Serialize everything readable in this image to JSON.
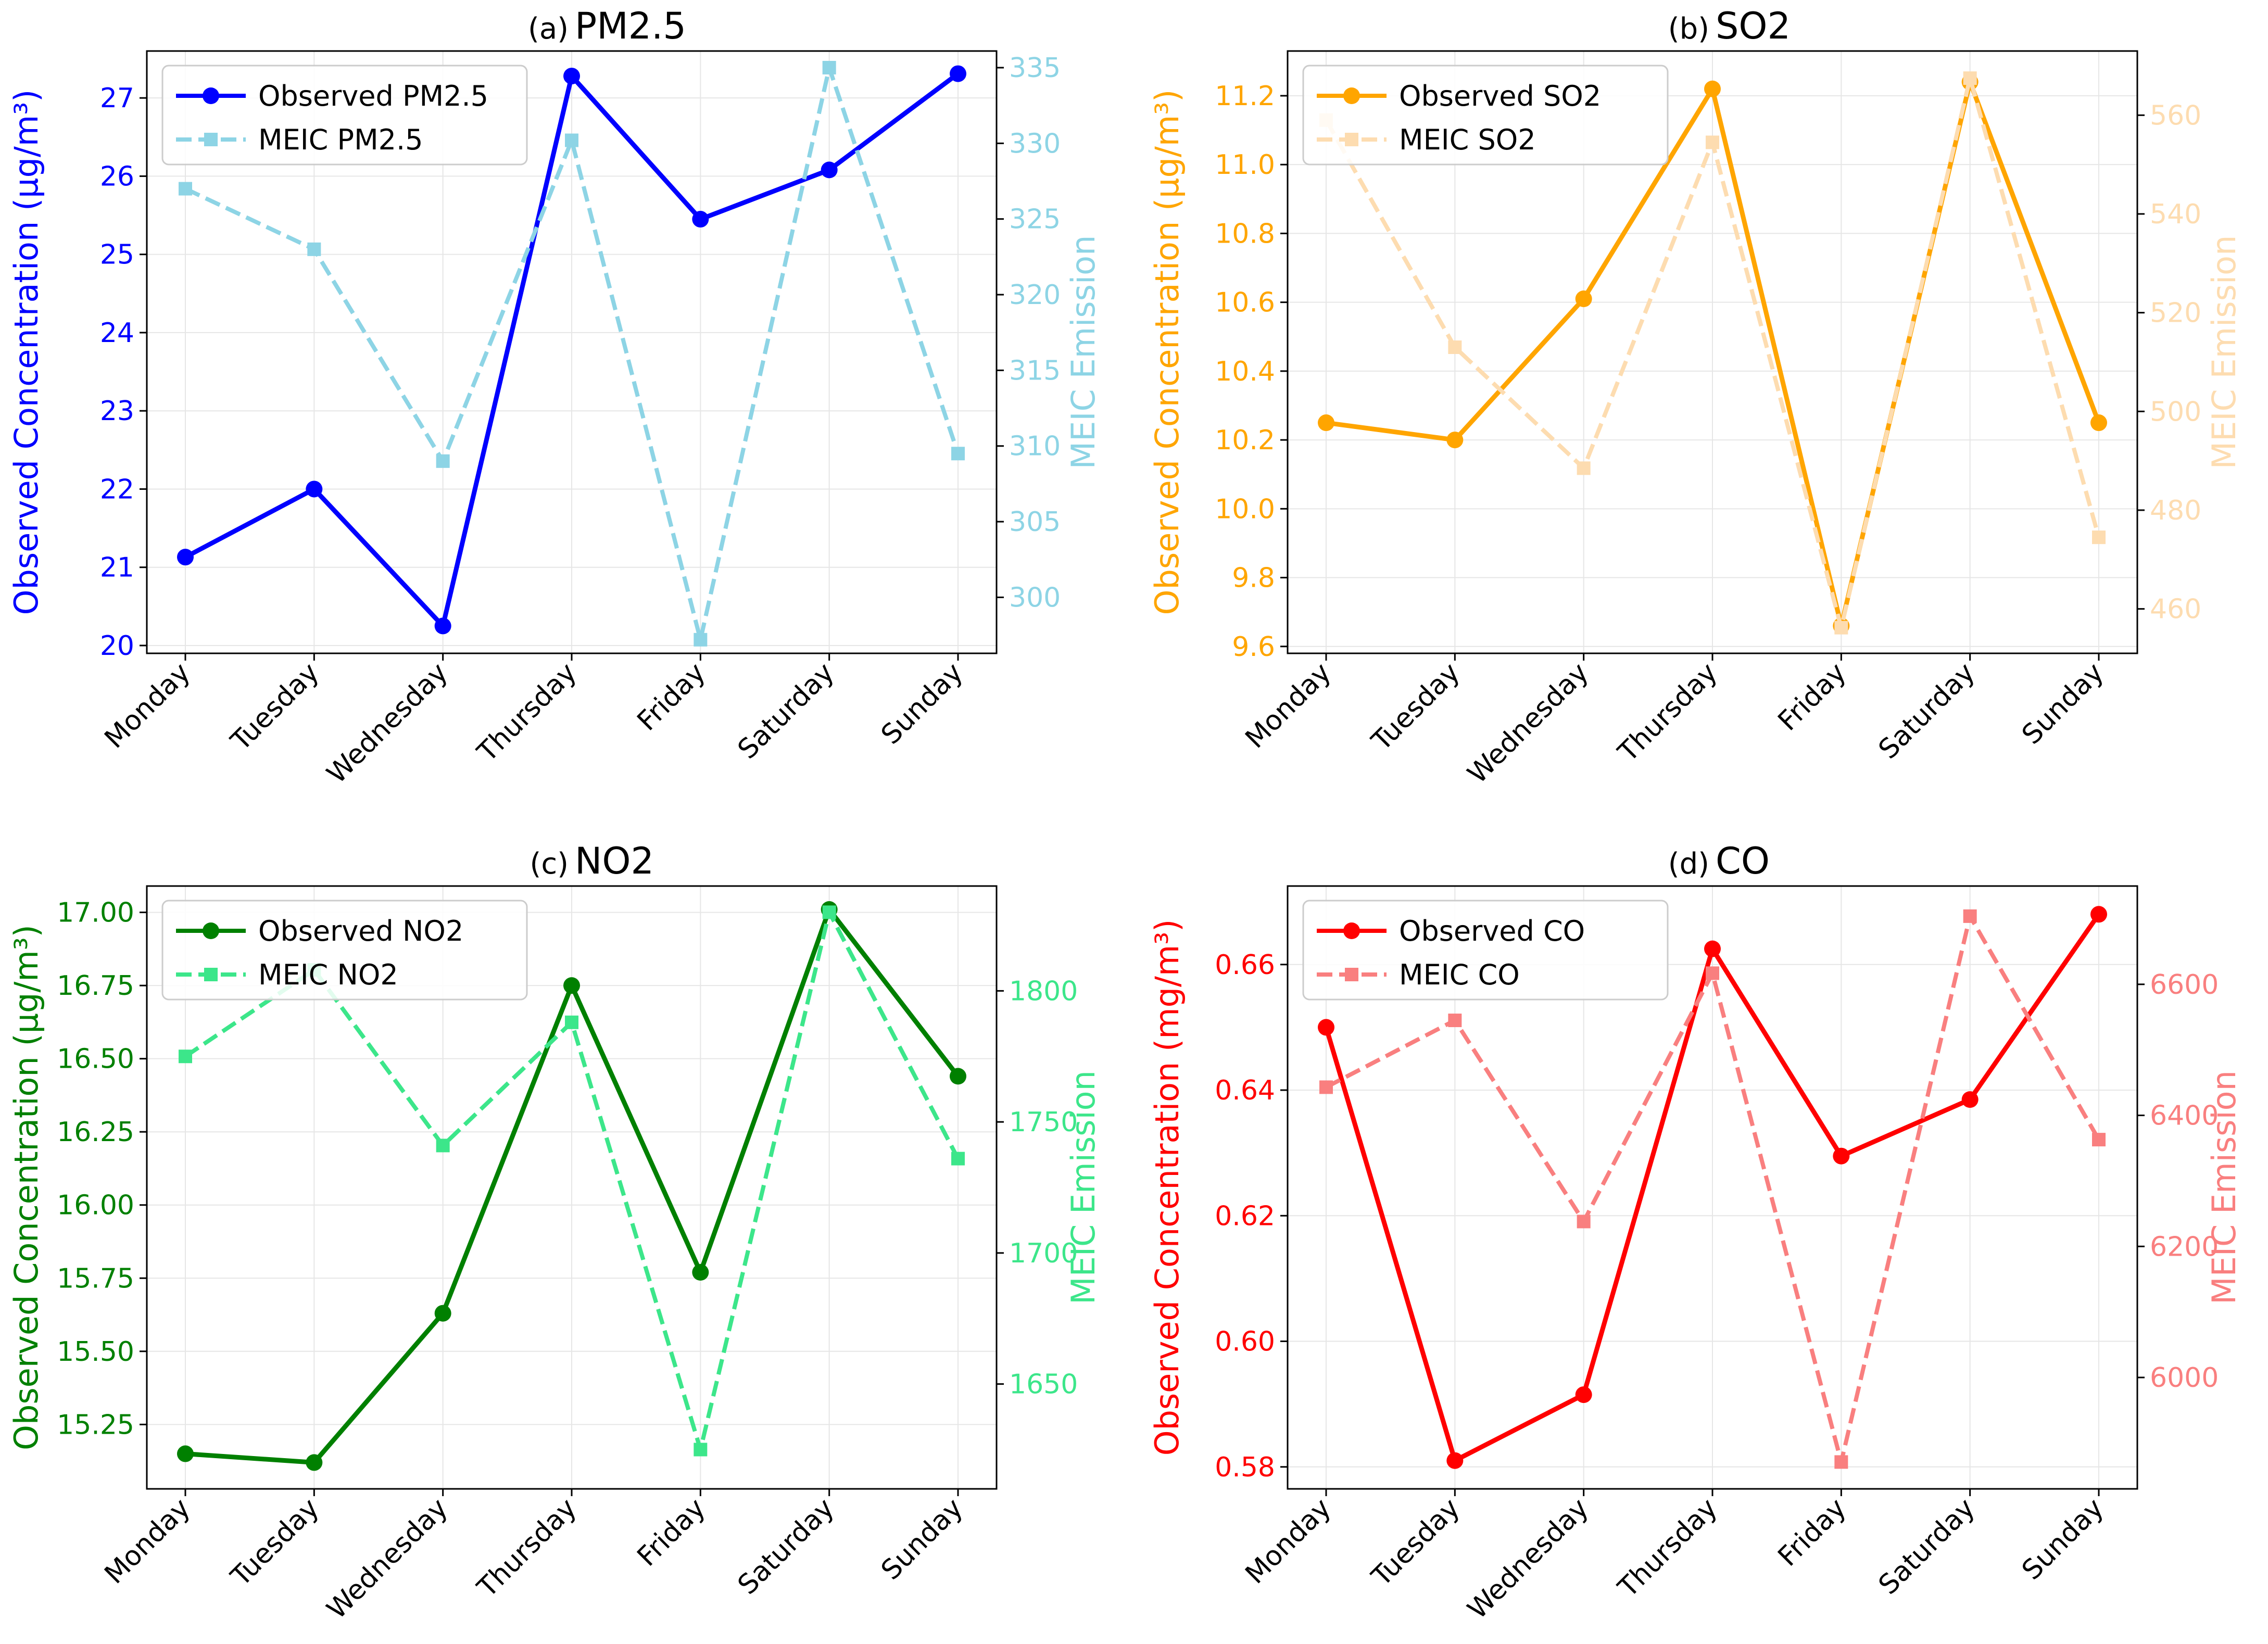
{
  "figure": {
    "categories": [
      "Monday",
      "Tuesday",
      "Wednesday",
      "Thursday",
      "Friday",
      "Saturday",
      "Sunday"
    ]
  },
  "chart_data": [
    {
      "id": "pm25",
      "type": "line",
      "title_prefix": "(a)",
      "title_main": "PM2.5",
      "categories": [
        "Monday",
        "Tuesday",
        "Wednesday",
        "Thursday",
        "Friday",
        "Saturday",
        "Sunday"
      ],
      "left_axis": {
        "label": "Observed Concentration (μg/m³)",
        "color": "#0000ff",
        "ylim": [
          19.9,
          27.6
        ],
        "ticks": [
          20,
          21,
          22,
          23,
          24,
          25,
          26,
          27
        ],
        "tick_labels": [
          "20",
          "21",
          "22",
          "23",
          "24",
          "25",
          "26",
          "27"
        ]
      },
      "right_axis": {
        "label": "MEIC Emission",
        "color": "#8dd4e5",
        "ylim": [
          296.3,
          336.1
        ],
        "ticks": [
          300,
          305,
          310,
          315,
          320,
          325,
          330,
          335
        ],
        "tick_labels": [
          "300",
          "305",
          "310",
          "315",
          "320",
          "325",
          "330",
          "335"
        ]
      },
      "series": [
        {
          "name": "Observed PM2.5",
          "axis": "left",
          "style": "solid",
          "marker": "circle",
          "color": "#0000ff",
          "values": [
            21.13,
            22.0,
            20.25,
            27.28,
            25.45,
            26.08,
            27.31
          ]
        },
        {
          "name": "MEIC PM2.5",
          "axis": "right",
          "style": "dashed",
          "marker": "square",
          "color": "#8dd4e5",
          "values": [
            327.0,
            323.0,
            309.0,
            330.2,
            297.2,
            335.0,
            309.5
          ]
        }
      ],
      "legend_position": "top-left",
      "grid": true
    },
    {
      "id": "so2",
      "type": "line",
      "title_prefix": "(b)",
      "title_main": "SO2",
      "categories": [
        "Monday",
        "Tuesday",
        "Wednesday",
        "Thursday",
        "Friday",
        "Saturday",
        "Sunday"
      ],
      "left_axis": {
        "label": "Observed Concentration (μg/m³)",
        "color": "#ffa500",
        "ylim": [
          9.58,
          11.33
        ],
        "ticks": [
          9.6,
          9.8,
          10.0,
          10.2,
          10.4,
          10.6,
          10.8,
          11.0,
          11.2
        ],
        "tick_labels": [
          "9.6",
          "9.8",
          "10.0",
          "10.2",
          "10.4",
          "10.6",
          "10.8",
          "11.0",
          "11.2"
        ]
      },
      "right_axis": {
        "label": "MEIC Emission",
        "color": "#fddcb0",
        "ylim": [
          451,
          573
        ],
        "ticks": [
          460,
          480,
          500,
          520,
          540,
          560
        ],
        "tick_labels": [
          "460",
          "480",
          "500",
          "520",
          "540",
          "560"
        ]
      },
      "series": [
        {
          "name": "Observed SO2",
          "axis": "left",
          "style": "solid",
          "marker": "circle",
          "color": "#ffa500",
          "values": [
            10.25,
            10.2,
            10.61,
            11.22,
            9.66,
            11.24,
            10.25
          ]
        },
        {
          "name": "MEIC SO2",
          "axis": "right",
          "style": "dashed",
          "marker": "square",
          "color": "#fddcb0",
          "values": [
            559.0,
            513.0,
            488.5,
            554.5,
            456.2,
            567.5,
            474.5
          ]
        }
      ],
      "legend_position": "top-left",
      "grid": true
    },
    {
      "id": "no2",
      "type": "line",
      "title_prefix": "(c)",
      "title_main": "NO2",
      "categories": [
        "Monday",
        "Tuesday",
        "Wednesday",
        "Thursday",
        "Friday",
        "Saturday",
        "Sunday"
      ],
      "left_axis": {
        "label": "Observed Concentration (μg/m³)",
        "color": "#008000",
        "ylim": [
          15.03,
          17.09
        ],
        "ticks": [
          15.25,
          15.5,
          15.75,
          16.0,
          16.25,
          16.5,
          16.75,
          17.0
        ],
        "tick_labels": [
          "15.25",
          "15.50",
          "15.75",
          "16.00",
          "16.25",
          "16.50",
          "16.75",
          "17.00"
        ]
      },
      "right_axis": {
        "label": "MEIC Emission",
        "color": "#3ce68a",
        "ylim": [
          1610,
          1840
        ],
        "ticks": [
          1650,
          1700,
          1750,
          1800
        ],
        "tick_labels": [
          "1650",
          "1700",
          "1750",
          "1800"
        ]
      },
      "series": [
        {
          "name": "Observed NO2",
          "axis": "left",
          "style": "solid",
          "marker": "circle",
          "color": "#008000",
          "values": [
            15.15,
            15.12,
            15.63,
            16.75,
            15.77,
            17.01,
            16.44
          ]
        },
        {
          "name": "MEIC NO2",
          "axis": "right",
          "style": "dashed",
          "marker": "square",
          "color": "#3ce68a",
          "values": [
            1775,
            1808,
            1741,
            1788,
            1625,
            1830,
            1736
          ]
        }
      ],
      "legend_position": "top-left",
      "grid": true
    },
    {
      "id": "co",
      "type": "line",
      "title_prefix": "(d)",
      "title_main": "CO",
      "categories": [
        "Monday",
        "Tuesday",
        "Wednesday",
        "Thursday",
        "Friday",
        "Saturday",
        "Sunday"
      ],
      "left_axis": {
        "label": "Observed Concentration (mg/m³)",
        "color": "#ff0000",
        "ylim": [
          0.5765,
          0.6725
        ],
        "ticks": [
          0.58,
          0.6,
          0.62,
          0.64,
          0.66
        ],
        "tick_labels": [
          "0.58",
          "0.60",
          "0.62",
          "0.64",
          "0.66"
        ]
      },
      "right_axis": {
        "label": "MEIC Emission",
        "color": "#f97f7f",
        "ylim": [
          5830,
          6750
        ],
        "ticks": [
          6000,
          6200,
          6400,
          6600
        ],
        "tick_labels": [
          "6000",
          "6200",
          "6400",
          "6600"
        ]
      },
      "series": [
        {
          "name": "Observed CO",
          "axis": "left",
          "style": "solid",
          "marker": "circle",
          "color": "#ff0000",
          "values": [
            0.65,
            0.581,
            0.5915,
            0.6625,
            0.6295,
            0.6385,
            0.668
          ]
        },
        {
          "name": "MEIC CO",
          "axis": "right",
          "style": "dashed",
          "marker": "square",
          "color": "#f97f7f",
          "values": [
            6443,
            6545,
            6238,
            6617,
            5871,
            6704,
            6363
          ]
        }
      ],
      "legend_position": "top-left",
      "grid": true
    }
  ]
}
